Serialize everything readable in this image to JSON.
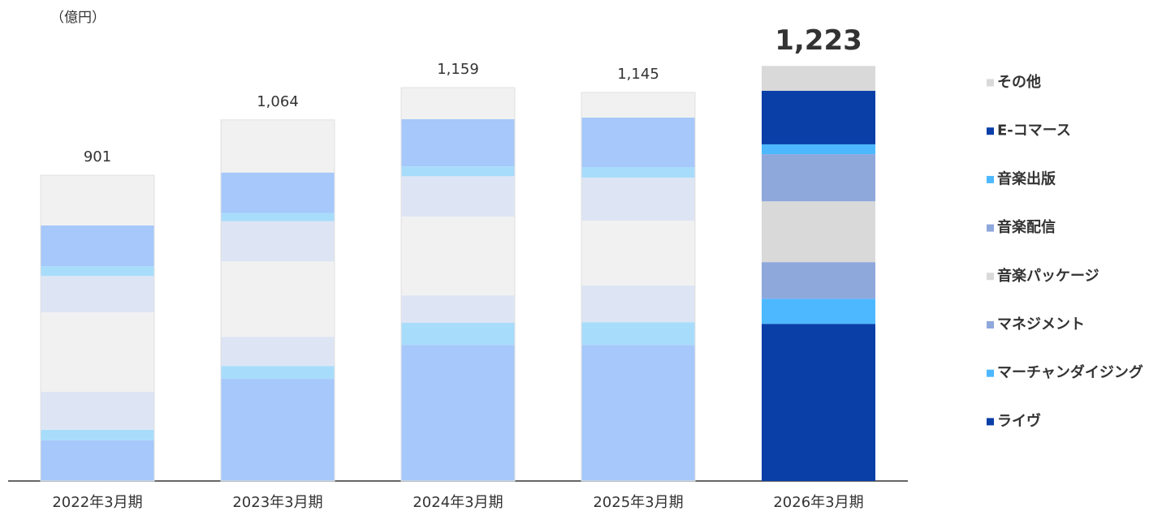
{
  "chart_data": {
    "type": "stacked_bar",
    "unit_label": "（億円）",
    "categories": [
      "2022年3月期",
      "2023年3月期",
      "2024年3月期",
      "2025年3月期",
      "2026年3月期"
    ],
    "highlight_index": 4,
    "ylim": [
      0,
      1250
    ],
    "totals": [
      901,
      1064,
      1159,
      1145,
      1223
    ],
    "total_labels": [
      "901",
      "1,064",
      "1,159",
      "1,145",
      "1,223"
    ],
    "series": [
      {
        "name": "ライヴ",
        "color": "#0a3fa8",
        "dim_color": "#a6c8fa",
        "values": [
          120,
          301,
          401,
          401,
          463
        ]
      },
      {
        "name": "マーチャンダイジング",
        "color": "#4db8ff",
        "dim_color": "#a8dcfb",
        "values": [
          31,
          38,
          65,
          67,
          74
        ]
      },
      {
        "name": "マネジメント",
        "color": "#8fa8dc",
        "dim_color": "#dde5f4",
        "values": [
          112,
          86,
          81,
          108,
          108
        ]
      },
      {
        "name": "音楽パッケージ",
        "color": "#d9d9d9",
        "dim_color": "#f1f1f1",
        "values": [
          234,
          222,
          232,
          191,
          179
        ]
      },
      {
        "name": "音楽配信",
        "color": "#8fa8dc",
        "dim_color": "#dde5f4",
        "values": [
          107,
          119,
          119,
          127,
          139
        ]
      },
      {
        "name": "音楽出版",
        "color": "#4db8ff",
        "dim_color": "#a8dcfb",
        "values": [
          29,
          24,
          29,
          31,
          29
        ]
      },
      {
        "name": "E-コマース",
        "color": "#0a3fa8",
        "dim_color": "#a6c8fa",
        "values": [
          120,
          119,
          139,
          146,
          158
        ]
      },
      {
        "name": "その他",
        "color": "#d9d9d9",
        "dim_color": "#f1f1f1",
        "values": [
          148,
          155,
          93,
          74,
          73
        ]
      }
    ]
  }
}
